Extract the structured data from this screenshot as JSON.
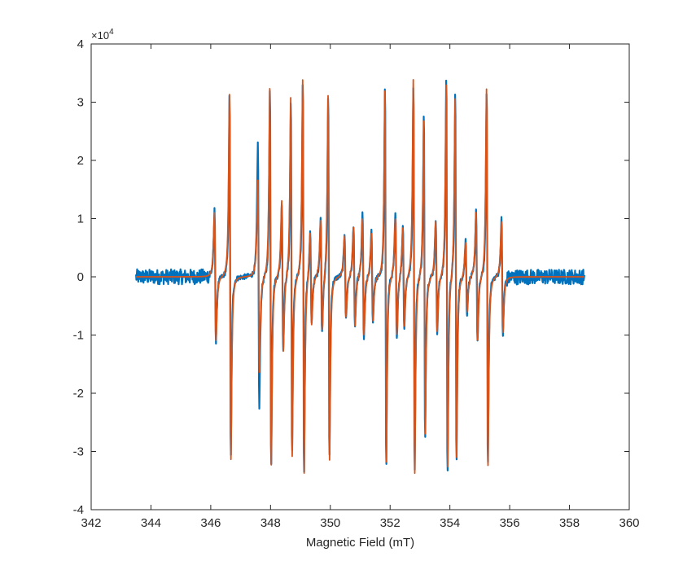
{
  "chart_data": {
    "type": "line",
    "title": "",
    "xlabel": "Magnetic Field (mT)",
    "ylabel": "",
    "xlim": [
      342,
      360
    ],
    "ylim": [
      -4,
      4
    ],
    "y_exponent_label": {
      "base": "×10",
      "power": "4"
    },
    "xticks": [
      342,
      344,
      346,
      348,
      350,
      352,
      354,
      356,
      358,
      360
    ],
    "xtick_labels": [
      "342",
      "344",
      "346",
      "348",
      "350",
      "352",
      "354",
      "356",
      "358",
      "360"
    ],
    "yticks": [
      -4,
      -3,
      -2,
      -1,
      0,
      1,
      2,
      3,
      4
    ],
    "ytick_labels": [
      "-4",
      "-3",
      "-2",
      "-1",
      "0",
      "1",
      "2",
      "3",
      "4"
    ],
    "grid": false,
    "box": true,
    "x_range": [
      343.5,
      358.5
    ],
    "series": [
      {
        "color": "#0072BD",
        "kind": "noisy experimental",
        "noise_amplitude": 0.13,
        "lines": [
          {
            "x": 346.15,
            "amp": 1.15,
            "w": 0.04
          },
          {
            "x": 346.65,
            "amp": 3.2,
            "w": 0.035
          },
          {
            "x": 347.6,
            "amp": 2.3,
            "w": 0.04
          },
          {
            "x": 348.0,
            "amp": 3.35,
            "w": 0.035
          },
          {
            "x": 348.4,
            "amp": 1.25,
            "w": 0.04
          },
          {
            "x": 348.7,
            "amp": 3.1,
            "w": 0.035
          },
          {
            "x": 349.1,
            "amp": 3.45,
            "w": 0.035
          },
          {
            "x": 349.35,
            "amp": 0.8,
            "w": 0.04
          },
          {
            "x": 349.7,
            "amp": 1.0,
            "w": 0.04
          },
          {
            "x": 349.95,
            "amp": 3.2,
            "w": 0.035
          },
          {
            "x": 350.5,
            "amp": 0.75,
            "w": 0.04
          },
          {
            "x": 350.8,
            "amp": 0.9,
            "w": 0.04
          },
          {
            "x": 351.1,
            "amp": 1.1,
            "w": 0.04
          },
          {
            "x": 351.4,
            "amp": 0.8,
            "w": 0.04
          },
          {
            "x": 351.85,
            "amp": 3.3,
            "w": 0.035
          },
          {
            "x": 352.2,
            "amp": 1.1,
            "w": 0.04
          },
          {
            "x": 352.45,
            "amp": 0.9,
            "w": 0.04
          },
          {
            "x": 352.8,
            "amp": 3.4,
            "w": 0.035
          },
          {
            "x": 353.15,
            "amp": 2.85,
            "w": 0.035
          },
          {
            "x": 353.55,
            "amp": 1.0,
            "w": 0.04
          },
          {
            "x": 353.9,
            "amp": 3.5,
            "w": 0.035
          },
          {
            "x": 354.2,
            "amp": 3.25,
            "w": 0.035
          },
          {
            "x": 354.55,
            "amp": 0.65,
            "w": 0.04
          },
          {
            "x": 354.9,
            "amp": 1.15,
            "w": 0.04
          },
          {
            "x": 355.25,
            "amp": 3.3,
            "w": 0.035
          },
          {
            "x": 355.75,
            "amp": 1.0,
            "w": 0.04
          }
        ]
      },
      {
        "color": "#D95319",
        "kind": "simulated fit",
        "noise_amplitude": 0.0,
        "lines": [
          {
            "x": 346.15,
            "amp": 1.1,
            "w": 0.045
          },
          {
            "x": 346.65,
            "amp": 3.15,
            "w": 0.04
          },
          {
            "x": 347.6,
            "amp": 1.65,
            "w": 0.045
          },
          {
            "x": 348.0,
            "amp": 3.25,
            "w": 0.04
          },
          {
            "x": 348.4,
            "amp": 1.3,
            "w": 0.045
          },
          {
            "x": 348.7,
            "amp": 3.1,
            "w": 0.04
          },
          {
            "x": 349.1,
            "amp": 3.4,
            "w": 0.04
          },
          {
            "x": 349.35,
            "amp": 0.8,
            "w": 0.045
          },
          {
            "x": 349.7,
            "amp": 0.95,
            "w": 0.045
          },
          {
            "x": 349.95,
            "amp": 3.15,
            "w": 0.04
          },
          {
            "x": 350.5,
            "amp": 0.7,
            "w": 0.045
          },
          {
            "x": 350.8,
            "amp": 0.85,
            "w": 0.045
          },
          {
            "x": 351.1,
            "amp": 1.0,
            "w": 0.045
          },
          {
            "x": 351.4,
            "amp": 0.75,
            "w": 0.045
          },
          {
            "x": 351.85,
            "amp": 3.2,
            "w": 0.04
          },
          {
            "x": 352.2,
            "amp": 1.0,
            "w": 0.045
          },
          {
            "x": 352.45,
            "amp": 0.85,
            "w": 0.045
          },
          {
            "x": 352.8,
            "amp": 3.4,
            "w": 0.04
          },
          {
            "x": 353.15,
            "amp": 2.7,
            "w": 0.04
          },
          {
            "x": 353.55,
            "amp": 0.95,
            "w": 0.045
          },
          {
            "x": 353.9,
            "amp": 3.3,
            "w": 0.04
          },
          {
            "x": 354.2,
            "amp": 3.1,
            "w": 0.04
          },
          {
            "x": 354.55,
            "amp": 0.6,
            "w": 0.045
          },
          {
            "x": 354.9,
            "amp": 1.1,
            "w": 0.045
          },
          {
            "x": 355.25,
            "amp": 3.25,
            "w": 0.04
          },
          {
            "x": 355.75,
            "amp": 0.95,
            "w": 0.045
          }
        ]
      }
    ]
  }
}
